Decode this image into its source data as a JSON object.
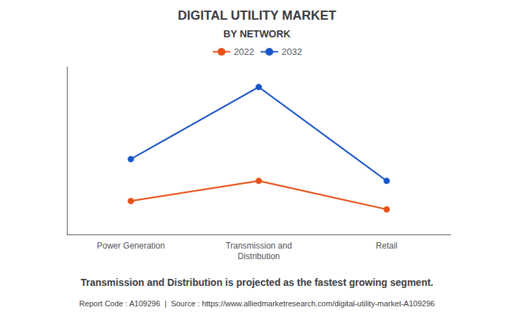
{
  "chart_data": {
    "type": "line",
    "title": "DIGITAL UTILITY MARKET",
    "subtitle": "BY NETWORK",
    "categories": [
      "Power Generation",
      "Transmission and\nDistribution",
      "Retail"
    ],
    "series": [
      {
        "name": "2022",
        "color": "#E8511A",
        "values": [
          2.0,
          3.2,
          1.5
        ]
      },
      {
        "name": "2032",
        "color": "#1A56C8",
        "values": [
          4.5,
          8.8,
          3.2
        ]
      }
    ],
    "ylim": [
      0,
      10
    ],
    "grid": false,
    "tick_labels": "x",
    "legend": "top",
    "marker": "circle",
    "line_style": "solid",
    "annotations": [
      "Transmission and Distribution is projected as the fastest growing segment.",
      "Report Code : A109296  |  Source : https://www.alliedmarketresearch.com/digital-utility-market-A109296"
    ]
  }
}
